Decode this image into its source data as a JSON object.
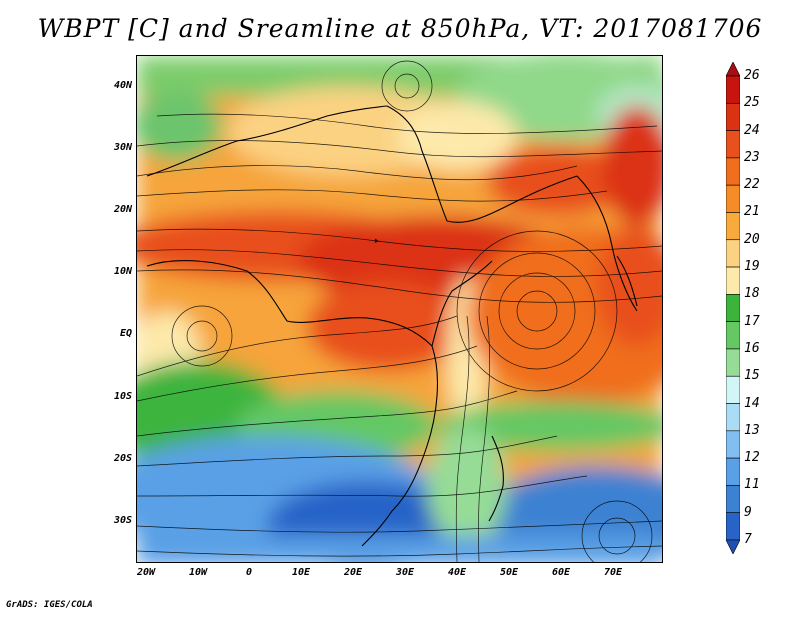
{
  "title": "WBPT [C] and Sreamline at 850hPa, VT: 2017081706",
  "credit": "GrADS: IGES/COLA",
  "map": {
    "lat_labels": [
      "40N",
      "30N",
      "20N",
      "10N",
      "EQ",
      "10S",
      "20S",
      "30S"
    ],
    "lat_values": [
      40,
      30,
      20,
      10,
      0,
      -10,
      -20,
      -30
    ],
    "lon_labels": [
      "20W",
      "10W",
      "0",
      "10E",
      "20E",
      "30E",
      "40E",
      "50E",
      "60E",
      "70E"
    ],
    "lon_values": [
      -20,
      -10,
      0,
      10,
      20,
      30,
      40,
      50,
      60,
      70
    ],
    "lat_range": [
      -36,
      45
    ],
    "lon_range": [
      -22,
      80
    ]
  },
  "colorbar": {
    "labels": [
      "26",
      "25",
      "24",
      "23",
      "22",
      "21",
      "20",
      "19",
      "18",
      "17",
      "16",
      "15",
      "14",
      "13",
      "12",
      "11",
      "9",
      "7"
    ],
    "colors": [
      "#a50f15",
      "#c8140e",
      "#dc3214",
      "#e8501e",
      "#f06e1e",
      "#f58c28",
      "#f8aa3c",
      "#fbd282",
      "#fde9aa",
      "#3cb43c",
      "#64c864",
      "#96dc96",
      "#d2f5f5",
      "#aadcf5",
      "#82bef0",
      "#5aa0e6",
      "#3c82d2",
      "#2864c8",
      "#1e50b4"
    ]
  }
}
